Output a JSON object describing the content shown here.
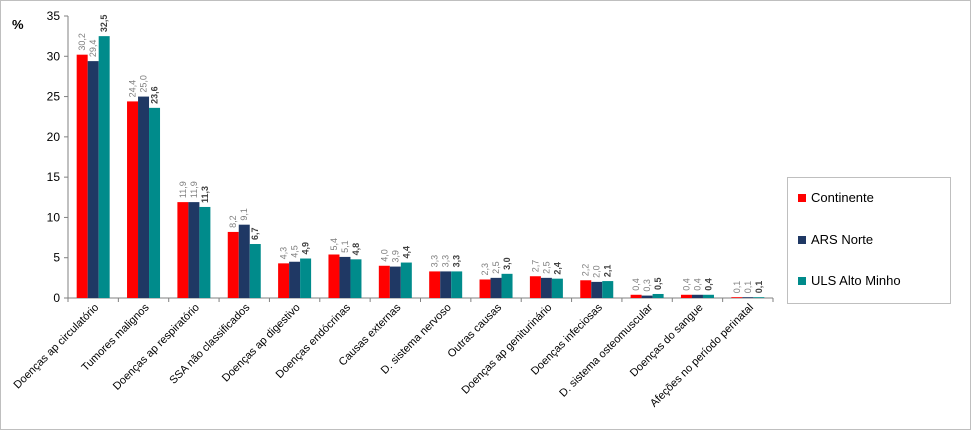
{
  "chart_data": {
    "type": "bar",
    "ylabel": "%",
    "ylim": [
      0,
      35
    ],
    "yticks": [
      0,
      5,
      10,
      15,
      20,
      25,
      30,
      35
    ],
    "grid": false,
    "legend_position": "right",
    "categories": [
      "Doenças ap circulatório",
      "Tumores malignos",
      "Doenças ap respiratório",
      "SSA não classificados",
      "Doenças ap digestivo",
      "Doenças endócrinas",
      "Causas externas",
      "D. sistema nervoso",
      "Outras causas",
      "Doenças ap geniturinário",
      "Doenças infeciosas",
      "D. sistema osteomuscular",
      "Doenças do sangue",
      "Afeções no período perinatal"
    ],
    "series": [
      {
        "name": "Continente",
        "color": "#ff0000",
        "values": [
          30.2,
          24.4,
          11.9,
          8.2,
          4.3,
          5.4,
          4.0,
          3.3,
          2.3,
          2.7,
          2.2,
          0.4,
          0.4,
          0.1
        ],
        "labels": [
          "30,2",
          "24,4",
          "11,9",
          "8,2",
          "4,3",
          "5,4",
          "4,0",
          "3,3",
          "2,3",
          "2,7",
          "2,2",
          "0,4",
          "0,4",
          "0,1"
        ]
      },
      {
        "name": "ARS Norte",
        "color": "#1f3864",
        "values": [
          29.4,
          25.0,
          11.9,
          9.1,
          4.5,
          5.1,
          3.9,
          3.3,
          2.5,
          2.5,
          2.0,
          0.3,
          0.4,
          0.1
        ],
        "labels": [
          "29,4",
          "25,0",
          "11,9",
          "9,1",
          "4,5",
          "5,1",
          "3,9",
          "3,3",
          "2,5",
          "2,5",
          "2,0",
          "0,3",
          "0,4",
          "0,1"
        ]
      },
      {
        "name": "ULS Alto Minho",
        "color": "#008b8b",
        "values": [
          32.5,
          23.6,
          11.3,
          6.7,
          4.9,
          4.8,
          4.4,
          3.3,
          3.0,
          2.4,
          2.1,
          0.5,
          0.4,
          0.1
        ],
        "labels": [
          "32,5",
          "23,6",
          "11,3",
          "6,7",
          "4,9",
          "4,8",
          "4,4",
          "3,3",
          "3,0",
          "2,4",
          "2,1",
          "0,5",
          "0,4",
          "0,1"
        ]
      }
    ]
  }
}
